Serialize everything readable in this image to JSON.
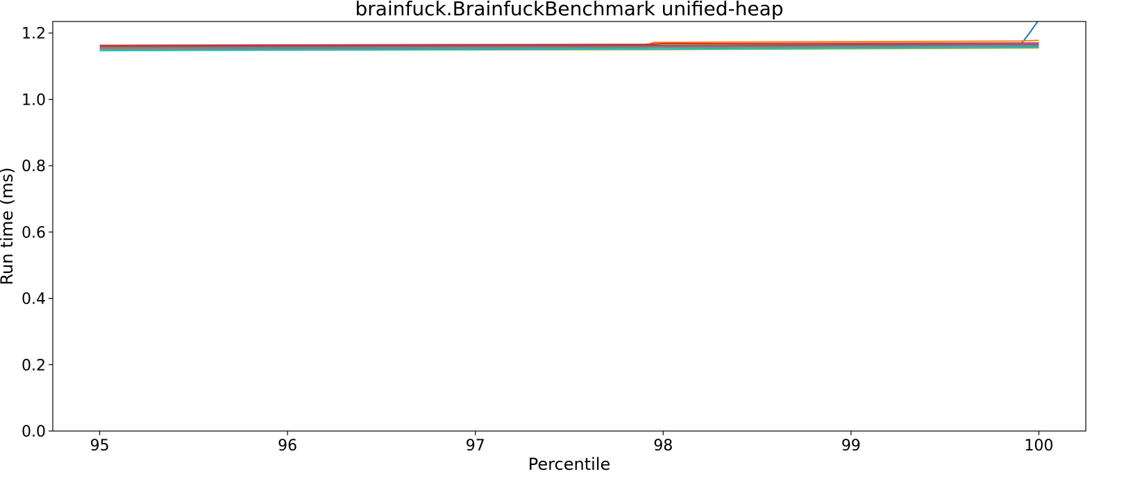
{
  "chart_data": {
    "type": "line",
    "title": "brainfuck.BrainfuckBenchmark unified-heap",
    "xlabel": "Percentile",
    "ylabel": "Run time (ms)",
    "xlim": [
      94.75,
      100.25
    ],
    "ylim": [
      0.0,
      1.235
    ],
    "xticks": [
      95,
      96,
      97,
      98,
      99,
      100
    ],
    "yticks": [
      0.0,
      0.2,
      0.4,
      0.6,
      0.8,
      1.0,
      1.2
    ],
    "xtick_labels": [
      "95",
      "96",
      "97",
      "98",
      "99",
      "100"
    ],
    "ytick_labels": [
      "0.0",
      "0.2",
      "0.4",
      "0.6",
      "0.8",
      "1.0",
      "1.2"
    ],
    "grid": false,
    "legend": "none",
    "series": [
      {
        "color": "#1f77b4",
        "x": [
          95,
          97.9,
          98.0,
          99.9,
          99.95,
          100
        ],
        "y": [
          1.151,
          1.155,
          1.16,
          1.163,
          1.2,
          1.24
        ]
      },
      {
        "color": "#ff7f0e",
        "x": [
          95,
          97.9,
          97.95,
          99.9,
          100
        ],
        "y": [
          1.157,
          1.161,
          1.172,
          1.176,
          1.178
        ]
      },
      {
        "color": "#2ca02c",
        "x": [
          95,
          98.0,
          100
        ],
        "y": [
          1.152,
          1.156,
          1.16
        ]
      },
      {
        "color": "#d62728",
        "x": [
          95,
          97.9,
          98.0,
          100
        ],
        "y": [
          1.163,
          1.166,
          1.168,
          1.17
        ]
      },
      {
        "color": "#9467bd",
        "x": [
          95,
          98.0,
          100
        ],
        "y": [
          1.155,
          1.162,
          1.168
        ]
      },
      {
        "color": "#8c564b",
        "x": [
          95,
          98.0,
          100
        ],
        "y": [
          1.16,
          1.163,
          1.165
        ]
      },
      {
        "color": "#e377c2",
        "x": [
          95,
          98.0,
          100
        ],
        "y": [
          1.153,
          1.157,
          1.162
        ]
      },
      {
        "color": "#7f7f7f",
        "x": [
          95,
          98.0,
          100
        ],
        "y": [
          1.154,
          1.158,
          1.163
        ]
      },
      {
        "color": "#bcbd22",
        "x": [
          95,
          98.0,
          100
        ],
        "y": [
          1.148,
          1.15,
          1.155
        ]
      },
      {
        "color": "#17becf",
        "x": [
          95,
          98.0,
          100
        ],
        "y": [
          1.147,
          1.152,
          1.157
        ]
      }
    ]
  }
}
